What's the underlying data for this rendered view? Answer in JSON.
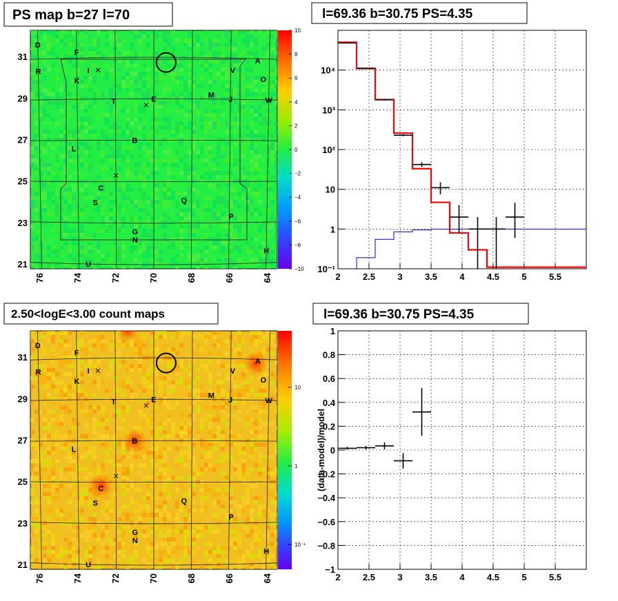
{
  "panels": {
    "ps_map": {
      "title": "PS map b=27 l=70",
      "colorbar_ticks": [
        "10",
        "8",
        "6",
        "4",
        "2",
        "0",
        "−2",
        "−4",
        "−6",
        "−8",
        "−10"
      ],
      "lat_ticks": [
        "31",
        "29",
        "27",
        "25",
        "23",
        "21"
      ],
      "lon_ticks": [
        "76",
        "74",
        "72",
        "70",
        "68",
        "66",
        "64"
      ]
    },
    "count_map": {
      "title": "2.50<logE<3.00 count maps",
      "colorbar_ticks": [
        "10",
        "1",
        "10⁻¹"
      ],
      "lat_ticks": [
        "31",
        "29",
        "27",
        "25",
        "23",
        "21"
      ],
      "lon_ticks": [
        "76",
        "74",
        "72",
        "70",
        "68",
        "66",
        "64"
      ]
    },
    "spectrum": {
      "title": "l=69.36 b=30.75 PS=4.35"
    },
    "residual": {
      "title": "l=69.36 b=30.75 PS=4.35",
      "ylabel": "(data-model)/model"
    }
  },
  "source_letters": [
    {
      "id": "D",
      "lon": 76.0,
      "lat": 31.7
    },
    {
      "id": "F",
      "lon": 74.0,
      "lat": 31.3
    },
    {
      "id": "R",
      "lon": 76.0,
      "lat": 30.4
    },
    {
      "id": "I",
      "lon": 73.4,
      "lat": 30.4
    },
    {
      "id": "K",
      "lon": 74.0,
      "lat": 29.9
    },
    {
      "id": "T",
      "lon": 72.1,
      "lat": 28.9
    },
    {
      "id": "E",
      "lon": 70.0,
      "lat": 29.0
    },
    {
      "id": "M",
      "lon": 67.0,
      "lat": 29.2
    },
    {
      "id": "J",
      "lon": 66.0,
      "lat": 29.0
    },
    {
      "id": "W",
      "lon": 64.0,
      "lat": 29.0
    },
    {
      "id": "V",
      "lon": 65.9,
      "lat": 30.4
    },
    {
      "id": "A",
      "lon": 64.6,
      "lat": 30.9
    },
    {
      "id": "O",
      "lon": 64.3,
      "lat": 30.0
    },
    {
      "id": "B",
      "lon": 71.0,
      "lat": 27.0
    },
    {
      "id": "L",
      "lon": 74.2,
      "lat": 26.6
    },
    {
      "id": "C",
      "lon": 72.8,
      "lat": 24.7
    },
    {
      "id": "S",
      "lon": 73.1,
      "lat": 24.0
    },
    {
      "id": "Q",
      "lon": 68.4,
      "lat": 24.1
    },
    {
      "id": "P",
      "lon": 65.9,
      "lat": 23.3
    },
    {
      "id": "G",
      "lon": 71.0,
      "lat": 22.6
    },
    {
      "id": "N",
      "lon": 71.0,
      "lat": 22.2
    },
    {
      "id": "H",
      "lon": 64.0,
      "lat": 21.6
    },
    {
      "id": "U",
      "lon": 73.5,
      "lat": 21.0
    }
  ],
  "cross_markers": [
    {
      "lon": 72.9,
      "lat": 30.4
    },
    {
      "lon": 70.4,
      "lat": 28.7
    },
    {
      "lon": 72.0,
      "lat": 25.3
    }
  ],
  "circle_marker": {
    "lon": 69.36,
    "lat": 30.75
  },
  "count_map_hotspots": [
    {
      "id": "A",
      "lon": 64.7,
      "lat": 30.8
    },
    {
      "id": "B",
      "lon": 71.0,
      "lat": 27.0
    },
    {
      "id": "C",
      "lon": 72.8,
      "lat": 24.8
    }
  ],
  "colors": {
    "model_line": "#ff0000",
    "source_line": "#0000cc",
    "data": "#000000",
    "ps_map_background": "#22ee44",
    "count_map_background": "#f0c020"
  },
  "chart_data": [
    {
      "type": "heatmap",
      "title": "PS map b=27 l=70",
      "xlabel": "",
      "ylabel": "",
      "x_range": [
        76.5,
        63.5
      ],
      "y_range": [
        20.8,
        32.3
      ],
      "z_range": [
        -10,
        10
      ]
    },
    {
      "type": "line",
      "title": "l=69.36 b=30.75 PS=4.35",
      "log_y": true,
      "xlim": [
        2,
        6
      ],
      "ylim": [
        0.1,
        100000
      ],
      "x_ticks": [
        "2",
        "2.5",
        "3",
        "3.5",
        "4",
        "4.5",
        "5",
        "5.5"
      ],
      "y_ticks": [
        "10⁻¹",
        "1",
        "10",
        "10²",
        "10³",
        "10⁴"
      ],
      "grid": true,
      "model_step_edges": [
        2.0,
        2.3,
        2.6,
        2.9,
        3.2,
        3.5,
        3.8,
        4.1,
        4.4,
        6.0
      ],
      "model_step_values": [
        50000,
        11000,
        1800,
        260,
        33,
        4.7,
        0.8,
        0.3,
        0.11
      ],
      "source_step_edges": [
        2.3,
        2.6,
        2.9,
        3.2,
        3.5,
        6.0
      ],
      "source_step_values": [
        0.19,
        0.55,
        0.85,
        0.95,
        1.0
      ],
      "data_points": [
        {
          "x": 2.15,
          "y": 48000,
          "xerr": 0.15,
          "ylo": 47000,
          "yhi": 49000
        },
        {
          "x": 2.45,
          "y": 11000,
          "xerr": 0.15,
          "ylo": 10800,
          "yhi": 11200
        },
        {
          "x": 2.75,
          "y": 1800,
          "xerr": 0.15,
          "ylo": 1720,
          "yhi": 1880
        },
        {
          "x": 3.05,
          "y": 230,
          "xerr": 0.15,
          "ylo": 215,
          "yhi": 245
        },
        {
          "x": 3.35,
          "y": 42,
          "xerr": 0.15,
          "ylo": 37,
          "yhi": 48
        },
        {
          "x": 3.65,
          "y": 11,
          "xerr": 0.15,
          "ylo": 7.5,
          "yhi": 15
        },
        {
          "x": 3.95,
          "y": 2.0,
          "xerr": 0.15,
          "ylo": 0.8,
          "yhi": 4.0
        },
        {
          "x": 4.25,
          "y": 1.0,
          "xerr": 0.15,
          "ylo": 0.1,
          "yhi": 2.0
        },
        {
          "x": 4.55,
          "y": 1.0,
          "xerr": 0.15,
          "ylo": 0.1,
          "yhi": 2.0
        },
        {
          "x": 4.85,
          "y": 2.0,
          "xerr": 0.15,
          "ylo": 0.6,
          "yhi": 4.6
        }
      ]
    },
    {
      "type": "heatmap",
      "title": "2.50<logE<3.00 count maps",
      "xlabel": "",
      "ylabel": "",
      "x_range": [
        76.5,
        63.5
      ],
      "y_range": [
        20.8,
        32.3
      ],
      "z_log": true,
      "z_range": [
        0.05,
        30
      ]
    },
    {
      "type": "scatter",
      "title": "l=69.36 b=30.75 PS=4.35",
      "xlabel": "",
      "ylabel": "(data-model)/model",
      "xlim": [
        2,
        6
      ],
      "ylim": [
        -1,
        1
      ],
      "x_ticks": [
        "2",
        "2.5",
        "3",
        "3.5",
        "4",
        "4.5",
        "5",
        "5.5"
      ],
      "y_ticks": [
        "1",
        "0.8",
        "0.6",
        "0.4",
        "0.2",
        "0",
        "−0.2",
        "−0.4",
        "−0.6",
        "−0.8",
        "−1"
      ],
      "grid": true,
      "points": [
        {
          "x": 2.15,
          "y": 0.015,
          "xerr": 0.15,
          "yerr": 0.012
        },
        {
          "x": 2.45,
          "y": 0.02,
          "xerr": 0.15,
          "yerr": 0.015
        },
        {
          "x": 2.75,
          "y": 0.035,
          "xerr": 0.15,
          "yerr": 0.03
        },
        {
          "x": 3.05,
          "y": -0.09,
          "xerr": 0.15,
          "yerr": 0.065
        },
        {
          "x": 3.35,
          "y": 0.32,
          "xerr": 0.15,
          "yerr": 0.2
        }
      ]
    }
  ]
}
